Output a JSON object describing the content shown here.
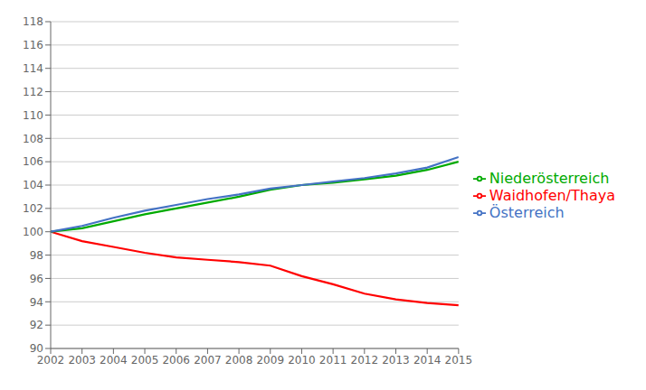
{
  "chart_data": {
    "type": "line",
    "x": [
      2002,
      2003,
      2004,
      2005,
      2006,
      2007,
      2008,
      2009,
      2010,
      2011,
      2012,
      2013,
      2014,
      2015
    ],
    "series": [
      {
        "name": "Waidhofen/Thaya",
        "color": "#FF0000",
        "values": [
          100.0,
          99.2,
          98.7,
          98.2,
          97.8,
          97.6,
          97.4,
          97.1,
          96.2,
          95.5,
          94.7,
          94.2,
          93.9,
          93.7
        ]
      },
      {
        "name": "Niederösterreich",
        "color": "#00AA00",
        "values": [
          100.0,
          100.3,
          100.9,
          101.5,
          102.0,
          102.5,
          103.0,
          103.6,
          104.0,
          104.2,
          104.5,
          104.8,
          105.3,
          106.0
        ]
      },
      {
        "name": "Österreich",
        "color": "#4472C4",
        "values": [
          100.0,
          100.5,
          101.2,
          101.8,
          102.3,
          102.8,
          103.2,
          103.7,
          104.0,
          104.3,
          104.6,
          105.0,
          105.5,
          106.4
        ]
      }
    ],
    "xlim": [
      2002,
      2015
    ],
    "xticks": [
      2002,
      2003,
      2004,
      2005,
      2006,
      2007,
      2008,
      2009,
      2010,
      2011,
      2012,
      2013,
      2014,
      2015
    ],
    "ylim": [
      90,
      118
    ],
    "yticks": [
      90,
      92,
      94,
      96,
      98,
      100,
      102,
      104,
      106,
      108,
      110,
      112,
      114,
      116,
      118
    ],
    "grid": true,
    "legend": "right"
  }
}
